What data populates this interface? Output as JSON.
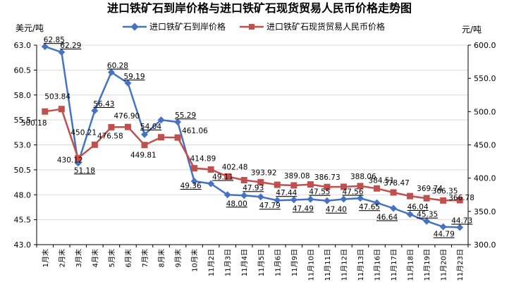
{
  "chart_data": {
    "type": "line",
    "title": "进口铁矿石到岸价格与进口铁矿石现货贸易人民币价格走势图",
    "left_unit": "美元/吨",
    "right_unit": "元/吨",
    "categories": [
      "1月末",
      "2月末",
      "3月末",
      "4月末",
      "5月末",
      "6月末",
      "7月末",
      "8月末",
      "9月末",
      "10月末",
      "11月2日",
      "11月3日",
      "11月4日",
      "11月5日",
      "11月6日",
      "11月9日",
      "11月10日",
      "11月11日",
      "11月12日",
      "11月13日",
      "11月16日",
      "11月17日",
      "11月18日",
      "11月19日",
      "11月20日",
      "11月23日"
    ],
    "left_axis": {
      "min": 43.0,
      "max": 63.0,
      "ticks": [
        "43.0",
        "45.5",
        "48.0",
        "50.5",
        "53.0",
        "55.5",
        "58.0",
        "60.5",
        "63.0"
      ]
    },
    "right_axis": {
      "min": 300.0,
      "max": 600.0,
      "ticks": [
        "300.0",
        "350.0",
        "400.0",
        "450.0",
        "500.0",
        "550.0",
        "600.0"
      ]
    },
    "grid": true,
    "legend_position": "top",
    "series": [
      {
        "name": "进口铁矿石到岸价格",
        "axis": "left",
        "color": "#4472c4",
        "marker": "diamond",
        "values": [
          62.85,
          62.29,
          51.18,
          56.43,
          60.28,
          59.19,
          54.04,
          55.5,
          55.29,
          49.36,
          49.11,
          48.0,
          47.93,
          47.79,
          47.44,
          47.49,
          47.55,
          47.4,
          47.56,
          47.65,
          47.2,
          46.64,
          46.04,
          45.35,
          44.79,
          44.73
        ],
        "labels": [
          "62.85",
          "62.29",
          "51.18",
          "56.43",
          "60.28",
          "59.19",
          "54.04",
          "",
          "55.29",
          "49.36",
          "49.11",
          "48.00",
          "47.93",
          "47.79",
          "47.44",
          "47.49",
          "47.55",
          "47.40",
          "47.56",
          "47.65",
          "",
          "46.64",
          "46.04",
          "45.35",
          "44.79",
          "44.73"
        ]
      },
      {
        "name": "进口铁矿石现货贸易人民币价格",
        "axis": "right",
        "color": "#c0504d",
        "marker": "square",
        "values": [
          500.18,
          503.84,
          430.12,
          450.21,
          476.58,
          476.9,
          449.81,
          461.5,
          461.06,
          414.89,
          413.0,
          402.48,
          397.0,
          393.92,
          390.0,
          389.08,
          390.5,
          386.73,
          387.0,
          388.06,
          384.51,
          378.47,
          373.0,
          369.74,
          366.35,
          366.78
        ],
        "labels": [
          "500.18",
          "503.84",
          "430.12",
          "450.21",
          "476.58",
          "476.90",
          "449.81",
          "",
          "461.06",
          "414.89",
          "",
          "402.48",
          "",
          "393.92",
          "",
          "389.08",
          "",
          "386.73",
          "",
          "388.06",
          "384.51",
          "378.47",
          "",
          "369.74",
          "366.35",
          "366.78"
        ]
      }
    ]
  }
}
